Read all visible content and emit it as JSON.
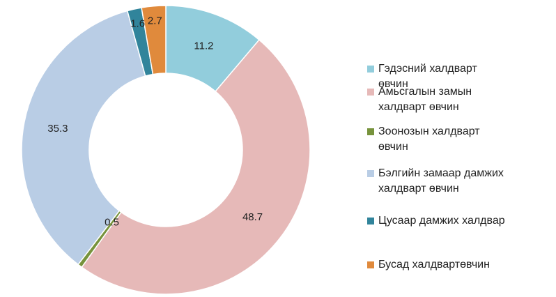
{
  "chart_data": {
    "type": "donut",
    "categories": [
      "Гэдэсний халдварт өвчин",
      "Амьсгалын замын халдварт өвчин",
      "Зоонозын халдварт өвчин",
      "Бэлгийн замаар дамжих халдварт өвчин",
      "Цусаар дамжих халдвар",
      "Бусад халдвартөвчин"
    ],
    "values": [
      11.2,
      48.7,
      0.5,
      35.3,
      1.6,
      2.7
    ],
    "colors": [
      "#92cddc",
      "#e6b9b8",
      "#77933c",
      "#b9cde5",
      "#31849b",
      "#e08a3c"
    ],
    "legend": "right"
  }
}
